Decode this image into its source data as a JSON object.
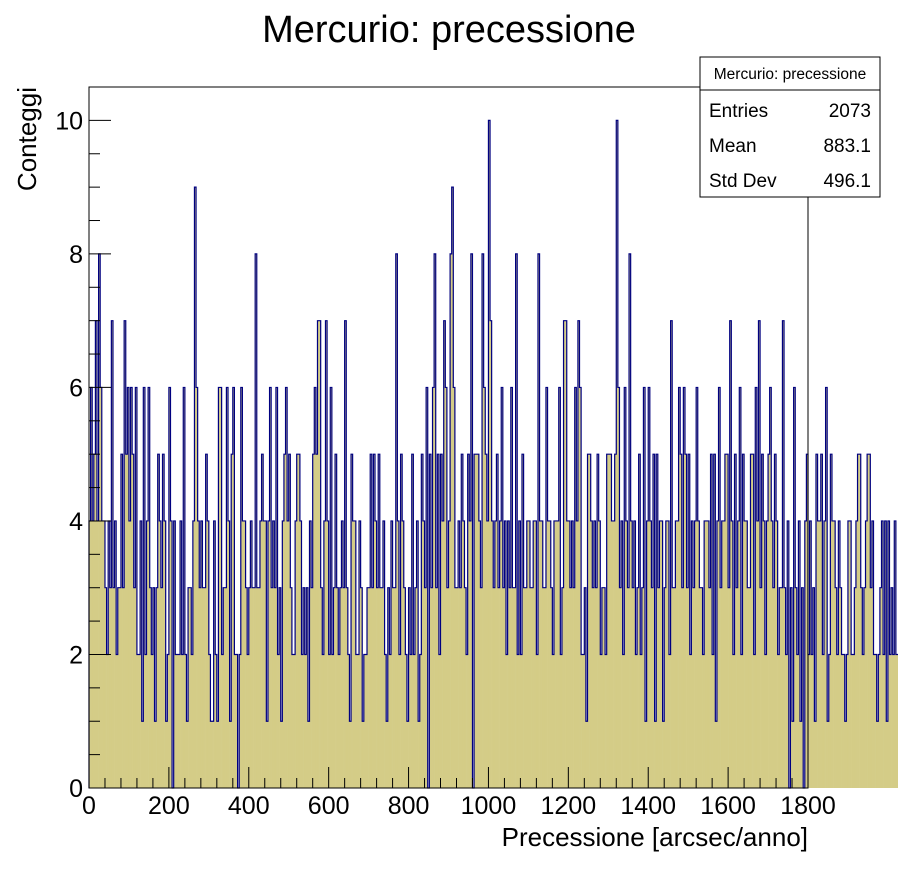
{
  "chart_data": {
    "type": "bar",
    "style": "histogram-step",
    "title": "Mercurio: precessione",
    "xlabel": "Precessione [arcsec/anno]",
    "ylabel": "Conteggi",
    "xlim": [
      0,
      1800
    ],
    "ylim": [
      0,
      10.5
    ],
    "x_ticks": [
      0,
      200,
      400,
      600,
      800,
      1000,
      1200,
      1400,
      1600,
      1800
    ],
    "y_ticks": [
      0,
      2,
      4,
      6,
      8,
      10
    ],
    "bin_width": 4,
    "grid": false,
    "legend_position": "top-right",
    "colors": {
      "fill": "#d4cc87",
      "line": "#000080"
    },
    "stats_box": {
      "title": "Mercurio: precessione",
      "rows": [
        {
          "label": "Entries",
          "value": "2073"
        },
        {
          "label": "Mean",
          "value": "883.1"
        },
        {
          "label": "Std Dev",
          "value": "496.1"
        }
      ]
    },
    "values": [
      4,
      6,
      4,
      5,
      7,
      4,
      8,
      6,
      4,
      4,
      3,
      2,
      4,
      3,
      7,
      3,
      4,
      2,
      3,
      3,
      5,
      3,
      7,
      5,
      6,
      4,
      6,
      5,
      3,
      6,
      2,
      2,
      4,
      1,
      6,
      2,
      4,
      6,
      3,
      2,
      3,
      1,
      3,
      5,
      4,
      3,
      5,
      4,
      1,
      2,
      6,
      4,
      0,
      4,
      2,
      2,
      2,
      4,
      2,
      6,
      2,
      1,
      3,
      3,
      2,
      4,
      9,
      6,
      4,
      3,
      4,
      3,
      3,
      5,
      4,
      2,
      1,
      1,
      4,
      2,
      1,
      6,
      6,
      2,
      3,
      3,
      6,
      4,
      1,
      5,
      6,
      2,
      2,
      0,
      2,
      6,
      4,
      4,
      3,
      2,
      3,
      4,
      3,
      3,
      8,
      3,
      3,
      4,
      5,
      4,
      4,
      1,
      4,
      6,
      3,
      4,
      3,
      6,
      2,
      3,
      1,
      4,
      5,
      6,
      4,
      5,
      3,
      2,
      2,
      4,
      5,
      5,
      4,
      2,
      3,
      2,
      3,
      1,
      4,
      3,
      5,
      6,
      5,
      7,
      7,
      3,
      2,
      4,
      7,
      4,
      2,
      6,
      2,
      3,
      5,
      3,
      2,
      3,
      4,
      3,
      7,
      3,
      2,
      1,
      5,
      4,
      4,
      2,
      2,
      4,
      3,
      1,
      2,
      2,
      3,
      3,
      5,
      3,
      5,
      4,
      3,
      5,
      3,
      3,
      4,
      2,
      1,
      3,
      2,
      4,
      3,
      3,
      8,
      4,
      2,
      5,
      4,
      3,
      2,
      1,
      3,
      2,
      5,
      2,
      3,
      4,
      1,
      2,
      5,
      4,
      3,
      6,
      0,
      5,
      3,
      6,
      8,
      3,
      5,
      2,
      5,
      4,
      7,
      6,
      3,
      4,
      8,
      9,
      6,
      3,
      3,
      4,
      3,
      5,
      4,
      3,
      2,
      5,
      4,
      8,
      0,
      5,
      5,
      5,
      4,
      3,
      8,
      6,
      5,
      4,
      10,
      7,
      4,
      3,
      4,
      5,
      3,
      4,
      6,
      3,
      4,
      2,
      4,
      3,
      6,
      3,
      3,
      8,
      2,
      4,
      2,
      5,
      3,
      3,
      4,
      4,
      3,
      3,
      4,
      4,
      2,
      8,
      4,
      4,
      3,
      3,
      6,
      4,
      4,
      3,
      2,
      4,
      4,
      4,
      6,
      2,
      3,
      7,
      7,
      4,
      4,
      3,
      4,
      3,
      6,
      4,
      7,
      6,
      2,
      2,
      3,
      1,
      5,
      5,
      4,
      3,
      4,
      3,
      5,
      4,
      2,
      3,
      3,
      2,
      5,
      5,
      5,
      4,
      4,
      5,
      10,
      6,
      3,
      4,
      2,
      6,
      4,
      3,
      8,
      4,
      3,
      4,
      2,
      3,
      5,
      2,
      3,
      6,
      1,
      4,
      6,
      4,
      3,
      5,
      1,
      5,
      3,
      4,
      4,
      1,
      3,
      4,
      4,
      2,
      7,
      3,
      3,
      4,
      4,
      6,
      5,
      3,
      6,
      5,
      3,
      5,
      2,
      4,
      3,
      4,
      6,
      4,
      3,
      3,
      2,
      4,
      4,
      4,
      3,
      5,
      2,
      5,
      1,
      4,
      6,
      3,
      4,
      4,
      5,
      5,
      3,
      7,
      4,
      2,
      5,
      3,
      4,
      6,
      2,
      5,
      4,
      4,
      3,
      3,
      5,
      5,
      2,
      6,
      4,
      7,
      3,
      5,
      4,
      2,
      4,
      5,
      6,
      4,
      3,
      5,
      4,
      2,
      3,
      3,
      7,
      3,
      2,
      4,
      0,
      3,
      1,
      6,
      3,
      2,
      4,
      1,
      3,
      0,
      4,
      5,
      2,
      4,
      2,
      3,
      1,
      5,
      4,
      4,
      5,
      2,
      4,
      6,
      1,
      2,
      5,
      4,
      4,
      3,
      2,
      4,
      3,
      2,
      2,
      1,
      2,
      4,
      4,
      2,
      2,
      3,
      4,
      5,
      5,
      3,
      2,
      3,
      4,
      5,
      5,
      3,
      4,
      2,
      2,
      1,
      2,
      3,
      4,
      2,
      4,
      1,
      4,
      2,
      3,
      2,
      4,
      2,
      2,
      1,
      3,
      2,
      1,
      4,
      1,
      1
    ]
  }
}
